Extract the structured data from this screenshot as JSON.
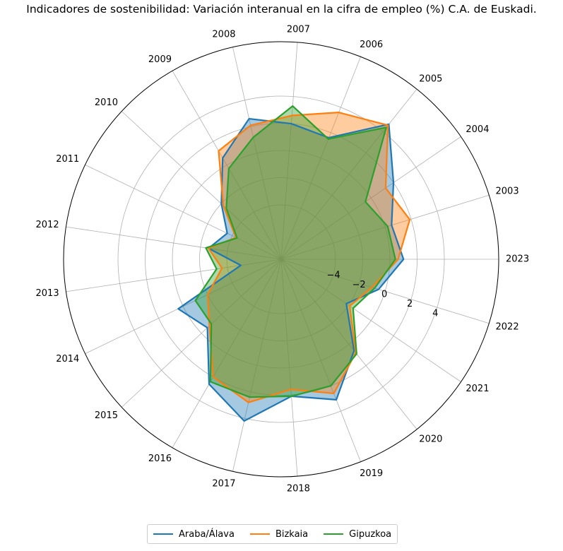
{
  "chart_data": {
    "type": "radar",
    "title": "Indicadores de sostenibilidad: Variación interanual en la cifra de empleo (%) C.A. de Euskadi.",
    "categories": [
      "2023",
      "2003",
      "2004",
      "2005",
      "2006",
      "2007",
      "2008",
      "2009",
      "2010",
      "2011",
      "2012",
      "2013",
      "2014",
      "2015",
      "2016",
      "2017",
      "2018",
      "2019",
      "2020",
      "2021",
      "2022"
    ],
    "radial_ticks": [
      -4,
      -2,
      0,
      2,
      4
    ],
    "radial_tick_labels": [
      "−4",
      "−2",
      "0",
      "2",
      "4"
    ],
    "rlim": [
      -8,
      8
    ],
    "grid": true,
    "legend_position": "bottom",
    "series": [
      {
        "name": "Araba/Álava",
        "color": "#1f77b4",
        "values": [
          1.0,
          0.5,
          2.0,
          4.7,
          1.6,
          2.0,
          2.6,
          0.6,
          -2.0,
          -3.6,
          -2.6,
          -5.0,
          0.4,
          -0.6,
          2.6,
          4.2,
          2.1,
          3.1,
          0.6,
          -2.2,
          -0.5
        ]
      },
      {
        "name": "Bizkaia",
        "color": "#ff7f0e",
        "values": [
          0.6,
          1.9,
          1.3,
          4.6,
          3.6,
          2.6,
          2.1,
          1.2,
          -2.2,
          -4.3,
          -2.6,
          -3.6,
          -2.0,
          -0.8,
          2.0,
          2.8,
          1.6,
          2.6,
          0.8,
          -1.9,
          -1.0
        ]
      },
      {
        "name": "Gipuzkoa",
        "color": "#2ca02c",
        "values": [
          0.4,
          0.2,
          -0.5,
          4.4,
          1.5,
          3.3,
          1.2,
          -0.3,
          -2.5,
          -4.4,
          -2.4,
          -3.2,
          -1.0,
          -1.0,
          2.4,
          2.4,
          2.1,
          2.0,
          0.9,
          -1.6,
          -0.8
        ]
      }
    ]
  }
}
